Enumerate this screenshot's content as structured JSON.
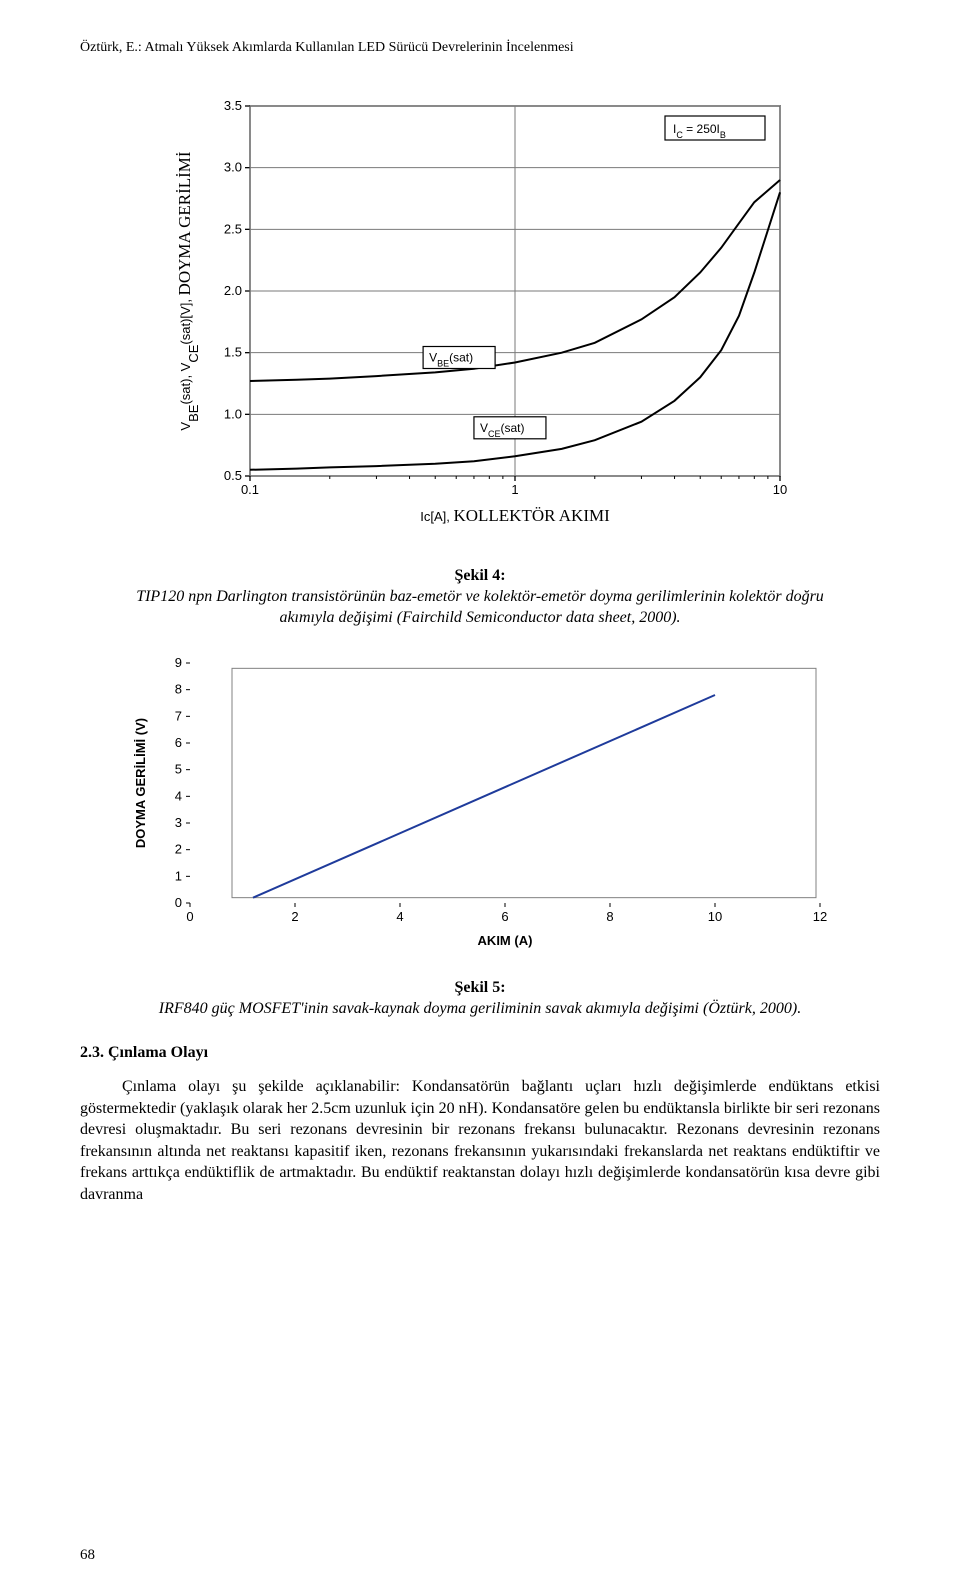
{
  "running_head": "Öztürk, E.: Atmalı Yüksek Akımlarda Kullanılan LED Sürücü Devrelerinin İncelenmesi",
  "page_number": "68",
  "fig4": {
    "label": "Şekil 4:",
    "caption": "TIP120 npn Darlington transistörünün baz-emetör ve kolektör-emetör doyma gerilimlerinin kolektör doğru akımıyla değişimi (Fairchild Semiconductor data sheet, 2000)."
  },
  "fig5": {
    "label": "Şekil 5:",
    "caption": "IRF840 güç MOSFET'inin savak-kaynak doyma geriliminin savak akımıyla değişimi (Öztürk, 2000)."
  },
  "section": {
    "number": "2.3.",
    "title": "Çınlama Olayı"
  },
  "paragraph": "Çınlama olayı şu şekilde açıklanabilir: Kondansatörün bağlantı uçları hızlı değişimlerde endüktans etkisi göstermektedir (yaklaşık olarak her 2.5cm uzunluk için 20 nH). Kondansatöre gelen bu endüktansla birlikte bir seri rezonans devresi oluşmaktadır. Bu seri rezonans devresinin bir rezonans frekansı bulunacaktır. Rezonans devresinin rezonans frekansının altında net reaktansı kapasitif iken, rezonans frekansının yukarısındaki frekanslarda net reaktans endüktiftir ve frekans arttıkça endüktiflik de artmaktadır. Bu endüktif reaktanstan dolayı hızlı değişimlerde kondansatörün kısa devre gibi davranma",
  "chart1": {
    "type": "line",
    "x_scale": "log",
    "xlim": [
      0.1,
      10
    ],
    "ylim": [
      0.5,
      3.5
    ],
    "xticks": [
      0.1,
      1,
      10
    ],
    "xtick_labels": [
      "0.1",
      "1",
      "10"
    ],
    "yticks": [
      0.5,
      1.0,
      1.5,
      2.0,
      2.5,
      3.0,
      3.5
    ],
    "ytick_labels": [
      "0.5",
      "1.0",
      "1.5",
      "2.0",
      "2.5",
      "3.0",
      "3.5"
    ],
    "x_axis_prefix": "Ic[A],",
    "x_axis_label": "KOLLEKTÖR AKIMI",
    "y_axis_prefix": "V",
    "y_axis_label": "DOYMA GERİLİMİ",
    "y_axis_sub1": "BE",
    "y_axis_sub2": "CE",
    "y_axis_sat": "(sat)[V],",
    "condition_box": "I",
    "condition_box_sub": "C",
    "condition_box_rest": " = 250I",
    "condition_box_rest_sub": "B",
    "label_vbe": "V",
    "label_vbe_sub": "BE",
    "label_vbe_rest": "(sat)",
    "label_vce": "V",
    "label_vce_sub": "CE",
    "label_vce_rest": "(sat)",
    "grid_color": "#7a7a7a",
    "border_color": "#000000",
    "curve_color": "#000000",
    "curve_width": 2,
    "series_vbe": [
      [
        0.1,
        1.27
      ],
      [
        0.15,
        1.28
      ],
      [
        0.2,
        1.29
      ],
      [
        0.3,
        1.31
      ],
      [
        0.5,
        1.34
      ],
      [
        0.7,
        1.37
      ],
      [
        1.0,
        1.42
      ],
      [
        1.5,
        1.5
      ],
      [
        2.0,
        1.58
      ],
      [
        3.0,
        1.77
      ],
      [
        4.0,
        1.95
      ],
      [
        5.0,
        2.15
      ],
      [
        6.0,
        2.35
      ],
      [
        7.0,
        2.55
      ],
      [
        8.0,
        2.72
      ],
      [
        10.0,
        2.9
      ]
    ],
    "series_vce": [
      [
        0.1,
        0.55
      ],
      [
        0.15,
        0.56
      ],
      [
        0.2,
        0.57
      ],
      [
        0.3,
        0.58
      ],
      [
        0.5,
        0.6
      ],
      [
        0.7,
        0.62
      ],
      [
        1.0,
        0.66
      ],
      [
        1.5,
        0.72
      ],
      [
        2.0,
        0.79
      ],
      [
        3.0,
        0.94
      ],
      [
        4.0,
        1.11
      ],
      [
        5.0,
        1.3
      ],
      [
        6.0,
        1.52
      ],
      [
        7.0,
        1.8
      ],
      [
        8.0,
        2.15
      ],
      [
        10.0,
        2.8
      ]
    ]
  },
  "chart2": {
    "type": "line",
    "xlim": [
      0,
      12
    ],
    "ylim": [
      0,
      9
    ],
    "xticks": [
      0,
      2,
      4,
      6,
      8,
      10,
      12
    ],
    "yticks": [
      0,
      1,
      2,
      3,
      4,
      5,
      6,
      7,
      8,
      9
    ],
    "ylabel": "DOYMA GERİLİMİ (V)",
    "xlabel": "AKIM (A)",
    "line_color": "#1f3b9b",
    "panel_border": "#808080",
    "series": [
      [
        1.2,
        0.2
      ],
      [
        10.0,
        7.8
      ]
    ]
  }
}
